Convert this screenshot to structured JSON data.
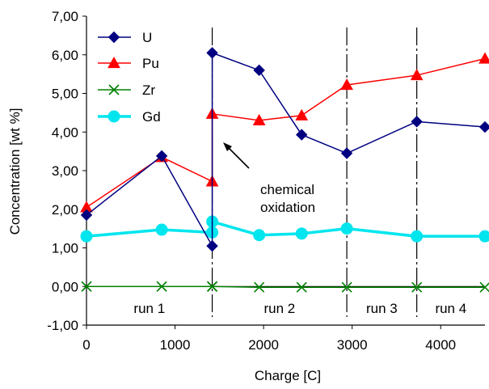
{
  "chart_data": {
    "type": "line",
    "xlabel": "Charge [C]",
    "ylabel": "Concentration [wt %]",
    "xlim": [
      0,
      4500
    ],
    "ylim": [
      -1,
      7
    ],
    "x_ticks": [
      0,
      1000,
      2000,
      3000,
      4000
    ],
    "x_tick_labels": [
      "0",
      "1000",
      "2000",
      "3000",
      "4000"
    ],
    "y_ticks": [
      -1,
      0,
      1,
      2,
      3,
      4,
      5,
      6,
      7
    ],
    "y_tick_labels": [
      "-1,00",
      "0,00",
      "1,00",
      "2,00",
      "3,00",
      "4,00",
      "5,00",
      "6,00",
      "7,00"
    ],
    "legend_position": "top-left",
    "grid": false,
    "series": [
      {
        "name": "U",
        "color": "#000080",
        "marker": "diamond",
        "points": [
          [
            0,
            1.85
          ],
          [
            850,
            3.38
          ],
          [
            1420,
            1.05
          ],
          [
            1420,
            6.05
          ],
          [
            1950,
            5.6
          ],
          [
            2430,
            3.93
          ],
          [
            2940,
            3.45
          ],
          [
            3730,
            4.27
          ],
          [
            4500,
            4.13
          ]
        ]
      },
      {
        "name": "Pu",
        "color": "#ff0000",
        "marker": "triangle",
        "points": [
          [
            0,
            2.05
          ],
          [
            850,
            3.35
          ],
          [
            1420,
            2.72
          ],
          [
            1420,
            4.47
          ],
          [
            1950,
            4.3
          ],
          [
            2430,
            4.43
          ],
          [
            2940,
            5.22
          ],
          [
            3730,
            5.47
          ],
          [
            4500,
            5.9
          ]
        ]
      },
      {
        "name": "Zr",
        "color": "#008000",
        "marker": "x",
        "points": [
          [
            0,
            0.0
          ],
          [
            850,
            0.0
          ],
          [
            1420,
            0.0
          ],
          [
            1420,
            0.0
          ],
          [
            1950,
            -0.02
          ],
          [
            2430,
            -0.02
          ],
          [
            2940,
            -0.02
          ],
          [
            3730,
            -0.02
          ],
          [
            4500,
            -0.02
          ]
        ]
      },
      {
        "name": "Gd",
        "color": "#00e5ee",
        "marker": "circle",
        "points": [
          [
            0,
            1.3
          ],
          [
            850,
            1.47
          ],
          [
            1420,
            1.4
          ],
          [
            1420,
            1.68
          ],
          [
            1950,
            1.33
          ],
          [
            2430,
            1.37
          ],
          [
            2940,
            1.5
          ],
          [
            3730,
            1.3
          ],
          [
            4500,
            1.3
          ]
        ]
      }
    ],
    "run_dividers": [
      1420,
      2940,
      3730
    ],
    "run_labels": [
      {
        "text": "run 1",
        "x": 710
      },
      {
        "text": "run 2",
        "x": 2180
      },
      {
        "text": "run 3",
        "x": 3335
      },
      {
        "text": "run 4",
        "x": 4115
      }
    ],
    "annotation": {
      "lines": [
        "chemical",
        "oxidation"
      ]
    }
  }
}
